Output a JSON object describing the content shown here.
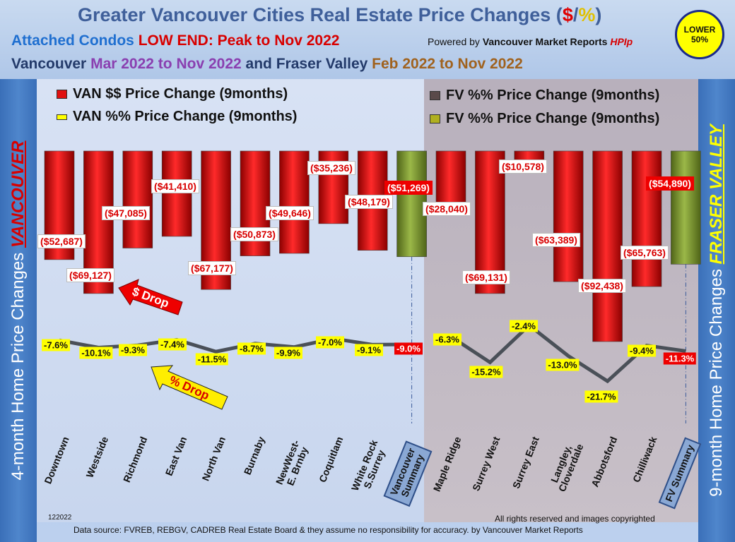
{
  "header": {
    "title_main": "Greater Vancouver Cities Real Estate Price Changes (",
    "title_dollar": "$",
    "title_slash": "/",
    "title_pct": "%",
    "title_close": ")",
    "line1_a": "Attached Condos",
    "line1_b": "LOW END: Peak to Nov 2022",
    "powered_a": "Powered by",
    "powered_b": "Vancouver Market Reports",
    "powered_c": "HPIp",
    "line2_a": "Vancouver",
    "line2_b": "Mar 2022 to Nov 2022",
    "line2_c": "and",
    "line2_d": "Fraser Valley",
    "line2_e": "Feb 2022 to Nov 2022",
    "badge_1": "LOWER",
    "badge_2": "50%"
  },
  "sidebars": {
    "left_text": "4-month Home Price Changes",
    "left_highlight": "VANCOUVER",
    "right_text": "9-month Home Price  Changes",
    "right_highlight": "FRASER VALLEY"
  },
  "legend": {
    "van_dollar": "VAN $$ Price Change (9months)",
    "van_pct": "VAN %% Price Change (9months)",
    "fv_dollar": "FV %% Price Change (9months)",
    "fv_pct": "FV %% Price Change (9months)"
  },
  "annotations": {
    "dollar_drop": "$ Drop",
    "pct_drop": "% Drop"
  },
  "footer": {
    "id": "122022",
    "rights": "All rights reserved and  images copyrighted",
    "source": "Data source: FVREB, REBGV, CADREB Real Estate Board & they assume no responsibility for accuracy. by Vancouver Market Reports"
  },
  "colors": {
    "bar_red": "#e01010",
    "bar_summary": "#7f9a2c",
    "line": "#4a5058",
    "label_yellow": "#ffff00"
  },
  "chart_data": {
    "type": "bar",
    "categories": [
      "Downtown",
      "Westside",
      "Richmond",
      "East Van",
      "North Van",
      "Burnaby",
      "NewWest-\nE. Brnby",
      "Coquitlam",
      "White Rock\nS.Surrey",
      "Vancouver\nSummary",
      "Maple Ridge",
      "Surrey West",
      "Surrey East",
      "Langley,\nCloverdale",
      "Abbotsford",
      "Chilliwack",
      "FV Summary"
    ],
    "groups": [
      "van",
      "van",
      "van",
      "van",
      "van",
      "van",
      "van",
      "van",
      "van",
      "van",
      "fv",
      "fv",
      "fv",
      "fv",
      "fv",
      "fv",
      "fv"
    ],
    "summary": [
      false,
      false,
      false,
      false,
      false,
      false,
      false,
      false,
      false,
      true,
      false,
      false,
      false,
      false,
      false,
      false,
      true
    ],
    "dollar_values": [
      -52687,
      -69127,
      -47085,
      -41410,
      -67177,
      -50873,
      -49646,
      -35236,
      -48179,
      -51269,
      -28040,
      -69131,
      -10578,
      -63389,
      -92438,
      -65763,
      -54890
    ],
    "dollar_labels": [
      "($52,687)",
      "($69,127)",
      "($47,085)",
      "($41,410)",
      "($67,177)",
      "($50,873)",
      "($49,646)",
      "($35,236)",
      "($48,179)",
      "($51,269)",
      "($28,040)",
      "($69,131)",
      "($10,578)",
      "($63,389)",
      "($92,438)",
      "($65,763)",
      "($54,890)"
    ],
    "pct_values": [
      -7.6,
      -10.1,
      -9.3,
      -7.4,
      -11.5,
      -8.7,
      -9.9,
      -7.0,
      -9.1,
      -9.0,
      -6.3,
      -15.2,
      -2.4,
      -13.0,
      -21.7,
      -9.4,
      -11.3
    ],
    "pct_labels": [
      "-7.6%",
      "-10.1%",
      "-9.3%",
      "-7.4%",
      "-11.5%",
      "-8.7%",
      "-9.9%",
      "-7.0%",
      "-9.1%",
      "-9.0%",
      "-6.3%",
      "-15.2%",
      "-2.4%",
      "-13.0%",
      "-21.7%",
      "-9.4%",
      "-11.3%"
    ],
    "ylim_dollar": [
      -92438,
      0
    ]
  }
}
